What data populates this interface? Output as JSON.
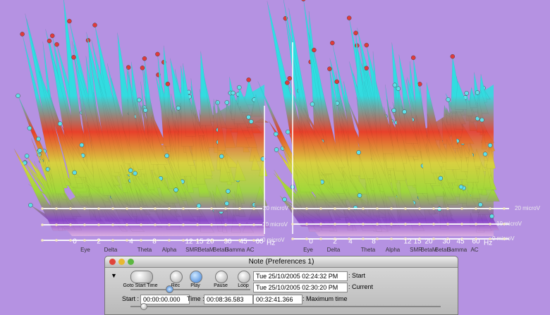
{
  "panels": [
    {
      "freq_ticks": [
        "0",
        "2",
        "4",
        "8",
        "12",
        "15",
        "20",
        "30",
        "45",
        "60"
      ],
      "unit": "Hz",
      "bands": [
        "Eye",
        "Delta",
        "Theta",
        "Alpha",
        "SMR",
        "BetaM",
        "BetaH",
        "Gamma",
        "AC"
      ],
      "levels": [
        "20 microV",
        "10 microV",
        "0 microV"
      ]
    },
    {
      "freq_ticks": [
        "0",
        "2",
        "4",
        "8",
        "12",
        "15",
        "20",
        "30",
        "45",
        "60"
      ],
      "unit": "Hz",
      "bands": [
        "Eye",
        "Delta",
        "Theta",
        "Alpha",
        "SMR",
        "BetaM",
        "BetaH",
        "Gamma",
        "AC"
      ],
      "levels": [
        "20 microV",
        "10 microV",
        "0 microV"
      ]
    }
  ],
  "window": {
    "title": "Note (Preferences 1)",
    "buttons": [
      "Goto Start Time",
      "Rec",
      "Play",
      "Pause",
      "Loop"
    ],
    "start_date": "Tue 25/10/2005 02:24:32 PM",
    "start_label": ": Start",
    "current_date": "Tue 25/10/2005 02:30:20 PM",
    "current_label": ": Current",
    "start_time_label": "Start :",
    "start_time": "00:00:00.000",
    "time_label": "Time :",
    "time": "00:08:36.583",
    "max_time": "00:32:41.366",
    "max_time_label": ": Maximum time"
  }
}
